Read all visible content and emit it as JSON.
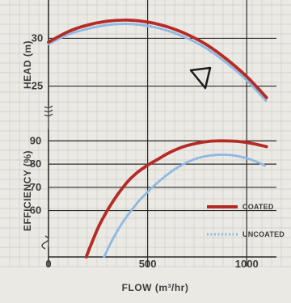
{
  "chart_data": [
    {
      "type": "line",
      "panel": "head",
      "ylabel": "HEAD (m)",
      "ylim": [
        21.5,
        33.5
      ],
      "yticks": [
        25,
        30
      ],
      "grid": true,
      "x": [
        0,
        100,
        200,
        300,
        400,
        500,
        600,
        700,
        800,
        900,
        1000,
        1100
      ],
      "series": [
        {
          "name": "COATED",
          "color": "#b52b27",
          "style": "solid",
          "values": [
            29.6,
            30.7,
            31.4,
            31.8,
            31.9,
            31.7,
            31.2,
            30.4,
            29.3,
            27.8,
            26.0,
            23.8
          ]
        },
        {
          "name": "UNCOATED",
          "color": "#8fb8e2",
          "style": "dotted",
          "values": [
            29.4,
            30.4,
            31.0,
            31.4,
            31.5,
            31.3,
            30.8,
            30.0,
            28.9,
            27.4,
            25.6,
            23.4
          ]
        }
      ]
    },
    {
      "type": "line",
      "panel": "efficiency",
      "ylabel": "EFFICIENCY (%)",
      "xlabel": "FLOW (m³/hr)",
      "xlim": [
        0,
        1150
      ],
      "xticks": [
        0,
        500,
        1000
      ],
      "ylim": [
        40,
        95
      ],
      "yticks": [
        60,
        70,
        80,
        90
      ],
      "grid": true,
      "legend_position": "right",
      "series": [
        {
          "name": "COATED",
          "color": "#b52b27",
          "style": "solid",
          "x": [
            190,
            250,
            300,
            350,
            400,
            450,
            500,
            550,
            600,
            650,
            700,
            750,
            800,
            850,
            900,
            950,
            1000,
            1050,
            1100
          ],
          "values": [
            40,
            52.5,
            60.5,
            67,
            72.5,
            76.5,
            79.5,
            82,
            84.5,
            86.5,
            88,
            89,
            89.7,
            90,
            90,
            89.8,
            89.3,
            88.5,
            87.5
          ]
        },
        {
          "name": "UNCOATED",
          "color": "#8fb8e2",
          "style": "dotted",
          "x": [
            280,
            320,
            360,
            400,
            450,
            500,
            550,
            600,
            650,
            700,
            750,
            800,
            850,
            900,
            950,
            1000,
            1050,
            1100
          ],
          "values": [
            40,
            47,
            53,
            58,
            63.5,
            68,
            72,
            75.5,
            78.5,
            80.8,
            82.5,
            83.5,
            84,
            84,
            83.5,
            82.5,
            81,
            79
          ]
        }
      ]
    }
  ],
  "texts": {
    "head_ylabel": "HEAD (m)",
    "eff_ylabel": "EFFICIENCY (%)",
    "xlabel": "FLOW (m³/hr)",
    "legend_coated": "COATED",
    "legend_uncoated": "UNCOATED"
  },
  "colors": {
    "background": "#ebe9e4",
    "minor_grid": "#cfcdc8",
    "major_grid": "#2a2a2a",
    "coated": "#b52b27",
    "uncoated": "#8fb8e2"
  },
  "icons": {
    "marker": "triangle-marker-icon",
    "axis_break": "axis-break-icon"
  }
}
